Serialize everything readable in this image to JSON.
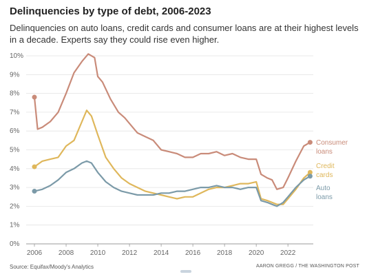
{
  "header": {
    "title": "Delinquencies by type of debt, 2006-2023",
    "subtitle": "Delinquencies on auto loans, credit cards and consumer loans are at their highest levels in a decade. Experts say they could rise even higher."
  },
  "footer": {
    "source": "Source: Equifax/Moody's Analytics",
    "credit": "AARON GREGG / THE WASHINGTON POST"
  },
  "chart_data": {
    "type": "line",
    "title": "Delinquencies by type of debt, 2006-2023",
    "xlabel": "",
    "ylabel": "",
    "xlim": [
      2006,
      2023.6
    ],
    "ylim": [
      0,
      10
    ],
    "x_ticks": [
      "2006",
      "2008",
      "2010",
      "2012",
      "2014",
      "2016",
      "2018",
      "2020",
      "2022"
    ],
    "y_ticks": [
      "0%",
      "1%",
      "2%",
      "3%",
      "4%",
      "5%",
      "6%",
      "7%",
      "8%",
      "9%",
      "10%"
    ],
    "grid": "horizontal",
    "legend": "direct labels at right end of lines",
    "series": [
      {
        "name": "Consumer loans",
        "color": "#c98b79",
        "x": [
          2006,
          2006.2,
          2006.5,
          2007,
          2007.5,
          2008,
          2008.5,
          2009,
          2009.4,
          2009.8,
          2010,
          2010.3,
          2010.8,
          2011.3,
          2011.7,
          2012,
          2012.5,
          2013,
          2013.5,
          2014,
          2014.5,
          2015,
          2015.5,
          2016,
          2016.5,
          2017,
          2017.5,
          2018,
          2018.5,
          2019,
          2019.5,
          2020,
          2020.3,
          2020.7,
          2021,
          2021.3,
          2021.7,
          2022,
          2022.5,
          2023,
          2023.4
        ],
        "values": [
          7.8,
          6.1,
          6.2,
          6.5,
          7.0,
          8.0,
          9.1,
          9.7,
          10.1,
          9.9,
          8.9,
          8.6,
          7.7,
          7.0,
          6.7,
          6.4,
          5.9,
          5.7,
          5.5,
          5.0,
          4.9,
          4.8,
          4.6,
          4.6,
          4.8,
          4.8,
          4.9,
          4.7,
          4.8,
          4.6,
          4.5,
          4.5,
          3.7,
          3.5,
          3.4,
          2.9,
          3.0,
          3.5,
          4.4,
          5.2,
          5.4
        ]
      },
      {
        "name": "Credit cards",
        "color": "#dfb75b",
        "x": [
          2006,
          2006.5,
          2007,
          2007.5,
          2008,
          2008.5,
          2009,
          2009.3,
          2009.6,
          2010,
          2010.5,
          2011,
          2011.5,
          2012,
          2012.5,
          2013,
          2013.5,
          2014,
          2014.5,
          2015,
          2015.5,
          2016,
          2016.5,
          2017,
          2017.5,
          2018,
          2018.5,
          2019,
          2019.5,
          2020,
          2020.3,
          2020.7,
          2021,
          2021.3,
          2021.7,
          2022,
          2022.5,
          2023,
          2023.4
        ],
        "values": [
          4.1,
          4.4,
          4.5,
          4.6,
          5.2,
          5.5,
          6.5,
          7.1,
          6.8,
          5.8,
          4.6,
          4.0,
          3.5,
          3.2,
          3.0,
          2.8,
          2.7,
          2.6,
          2.5,
          2.4,
          2.5,
          2.5,
          2.7,
          2.9,
          3.0,
          3.0,
          3.1,
          3.2,
          3.2,
          3.3,
          2.4,
          2.3,
          2.2,
          2.1,
          2.1,
          2.4,
          2.9,
          3.5,
          3.8
        ]
      },
      {
        "name": "Auto loans",
        "color": "#7b9aa8",
        "x": [
          2006,
          2006.5,
          2007,
          2007.5,
          2008,
          2008.5,
          2009,
          2009.3,
          2009.6,
          2010,
          2010.5,
          2011,
          2011.5,
          2012,
          2012.5,
          2013,
          2013.5,
          2014,
          2014.5,
          2015,
          2015.5,
          2016,
          2016.5,
          2017,
          2017.5,
          2018,
          2018.5,
          2019,
          2019.5,
          2020,
          2020.3,
          2020.7,
          2021,
          2021.3,
          2021.7,
          2022,
          2022.5,
          2023,
          2023.4
        ],
        "values": [
          2.8,
          2.9,
          3.1,
          3.4,
          3.8,
          4.0,
          4.3,
          4.4,
          4.3,
          3.8,
          3.3,
          3.0,
          2.8,
          2.7,
          2.6,
          2.6,
          2.6,
          2.7,
          2.7,
          2.8,
          2.8,
          2.9,
          3.0,
          3.0,
          3.1,
          3.0,
          3.0,
          2.9,
          3.0,
          3.0,
          2.3,
          2.2,
          2.1,
          2.0,
          2.2,
          2.5,
          3.0,
          3.4,
          3.6
        ]
      }
    ],
    "end_labels": [
      {
        "series": "Consumer loans",
        "lines": [
          "Consumer",
          "loans"
        ]
      },
      {
        "series": "Credit cards",
        "lines": [
          "Credit",
          "cards"
        ]
      },
      {
        "series": "Auto loans",
        "lines": [
          "Auto",
          "loans"
        ]
      }
    ]
  }
}
